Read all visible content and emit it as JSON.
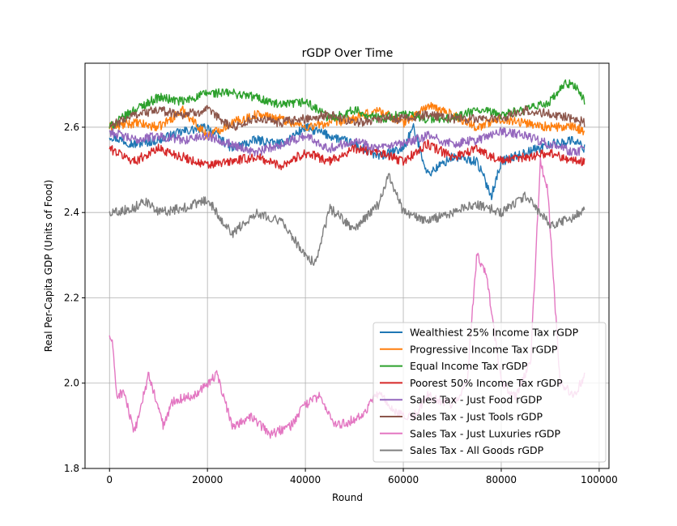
{
  "chart_data": {
    "type": "line",
    "title": "rGDP Over Time",
    "xlabel": "Round",
    "ylabel": "Real Per-Capita GDP (Units of Food)",
    "xlim": [
      -5000,
      102000
    ],
    "ylim": [
      1.8,
      2.75
    ],
    "xticks": [
      0,
      20000,
      40000,
      60000,
      80000,
      100000
    ],
    "xtick_labels": [
      "0",
      "20000",
      "40000",
      "60000",
      "80000",
      "100000"
    ],
    "yticks": [
      1.8,
      2.0,
      2.2,
      2.4,
      2.6
    ],
    "ytick_labels": [
      "1.8",
      "2.0",
      "2.2",
      "2.4",
      "2.6"
    ],
    "grid": true,
    "legend_position": "lower-right",
    "series": [
      {
        "name": "Wealthiest 25% Income Tax rGDP",
        "color": "#1f77b4",
        "x": [
          0,
          5000,
          10000,
          15000,
          20000,
          25000,
          30000,
          35000,
          40000,
          45000,
          50000,
          55000,
          60000,
          62000,
          65000,
          70000,
          75000,
          78000,
          80000,
          85000,
          90000,
          95000,
          97000
        ],
        "y": [
          2.58,
          2.56,
          2.57,
          2.59,
          2.6,
          2.55,
          2.57,
          2.56,
          2.6,
          2.58,
          2.56,
          2.53,
          2.55,
          2.6,
          2.49,
          2.53,
          2.52,
          2.44,
          2.52,
          2.54,
          2.56,
          2.57,
          2.55
        ]
      },
      {
        "name": "Progressive Income Tax rGDP",
        "color": "#ff7f0e",
        "x": [
          0,
          5000,
          10000,
          15000,
          20000,
          25000,
          30000,
          35000,
          40000,
          45000,
          50000,
          55000,
          60000,
          65000,
          70000,
          75000,
          80000,
          85000,
          90000,
          95000,
          97000
        ],
        "y": [
          2.6,
          2.61,
          2.6,
          2.64,
          2.58,
          2.61,
          2.63,
          2.62,
          2.6,
          2.61,
          2.62,
          2.64,
          2.61,
          2.65,
          2.63,
          2.6,
          2.62,
          2.61,
          2.6,
          2.6,
          2.59
        ]
      },
      {
        "name": "Equal Income Tax rGDP",
        "color": "#2ca02c",
        "x": [
          0,
          5000,
          10000,
          15000,
          20000,
          25000,
          30000,
          35000,
          40000,
          45000,
          50000,
          55000,
          60000,
          65000,
          70000,
          75000,
          80000,
          85000,
          90000,
          93000,
          95000,
          97000
        ],
        "y": [
          2.6,
          2.64,
          2.67,
          2.66,
          2.68,
          2.68,
          2.67,
          2.65,
          2.66,
          2.62,
          2.64,
          2.62,
          2.63,
          2.62,
          2.62,
          2.64,
          2.63,
          2.64,
          2.66,
          2.7,
          2.7,
          2.66
        ]
      },
      {
        "name": "Poorest 50% Income Tax rGDP",
        "color": "#d62728",
        "x": [
          0,
          5000,
          10000,
          15000,
          20000,
          25000,
          30000,
          35000,
          40000,
          45000,
          50000,
          55000,
          60000,
          65000,
          70000,
          75000,
          80000,
          85000,
          90000,
          95000,
          97000
        ],
        "y": [
          2.55,
          2.52,
          2.55,
          2.53,
          2.51,
          2.52,
          2.53,
          2.51,
          2.54,
          2.52,
          2.55,
          2.54,
          2.52,
          2.56,
          2.53,
          2.55,
          2.52,
          2.53,
          2.54,
          2.52,
          2.52
        ]
      },
      {
        "name": "Sales Tax - Just Food rGDP",
        "color": "#9467bd",
        "x": [
          0,
          5000,
          10000,
          15000,
          20000,
          25000,
          30000,
          35000,
          40000,
          45000,
          50000,
          55000,
          60000,
          65000,
          70000,
          75000,
          80000,
          85000,
          90000,
          95000,
          97000
        ],
        "y": [
          2.59,
          2.57,
          2.58,
          2.57,
          2.58,
          2.56,
          2.54,
          2.56,
          2.58,
          2.55,
          2.57,
          2.55,
          2.56,
          2.58,
          2.56,
          2.57,
          2.59,
          2.58,
          2.56,
          2.54,
          2.55
        ]
      },
      {
        "name": "Sales Tax - Just Tools rGDP",
        "color": "#8c564b",
        "x": [
          0,
          5000,
          10000,
          15000,
          20000,
          25000,
          30000,
          35000,
          40000,
          45000,
          50000,
          55000,
          60000,
          65000,
          70000,
          75000,
          80000,
          85000,
          90000,
          95000,
          97000
        ],
        "y": [
          2.6,
          2.63,
          2.64,
          2.63,
          2.64,
          2.6,
          2.62,
          2.61,
          2.62,
          2.63,
          2.61,
          2.62,
          2.62,
          2.63,
          2.62,
          2.62,
          2.62,
          2.64,
          2.63,
          2.62,
          2.61
        ]
      },
      {
        "name": "Sales Tax - Just Luxuries rGDP",
        "color": "#e377c2",
        "x": [
          0,
          500,
          1500,
          3000,
          5000,
          8000,
          11000,
          13000,
          17000,
          20000,
          22000,
          25000,
          29000,
          33000,
          37000,
          40000,
          43000,
          46000,
          49000,
          52000,
          55000,
          58000,
          62000,
          65000,
          70000,
          73000,
          75000,
          77000,
          80000,
          83000,
          86000,
          88000,
          89500,
          92000,
          95000,
          97000
        ],
        "y": [
          2.11,
          2.1,
          1.97,
          1.98,
          1.88,
          2.02,
          1.9,
          1.96,
          1.97,
          2.0,
          2.02,
          1.9,
          1.92,
          1.88,
          1.9,
          1.95,
          1.97,
          1.9,
          1.91,
          1.93,
          1.98,
          1.93,
          1.92,
          1.97,
          1.95,
          2.0,
          2.3,
          2.25,
          2.0,
          1.97,
          2.05,
          2.52,
          2.45,
          2.0,
          1.97,
          2.02
        ]
      },
      {
        "name": "Sales Tax - All Goods rGDP",
        "color": "#7f7f7f",
        "x": [
          0,
          5000,
          7000,
          10000,
          15000,
          20000,
          25000,
          30000,
          35000,
          40000,
          42000,
          45000,
          50000,
          55000,
          57000,
          60000,
          65000,
          70000,
          75000,
          80000,
          85000,
          90000,
          95000,
          97000
        ],
        "y": [
          2.4,
          2.41,
          2.43,
          2.4,
          2.41,
          2.43,
          2.35,
          2.4,
          2.38,
          2.3,
          2.28,
          2.41,
          2.36,
          2.42,
          2.49,
          2.4,
          2.38,
          2.4,
          2.42,
          2.4,
          2.44,
          2.37,
          2.39,
          2.41
        ]
      }
    ]
  }
}
